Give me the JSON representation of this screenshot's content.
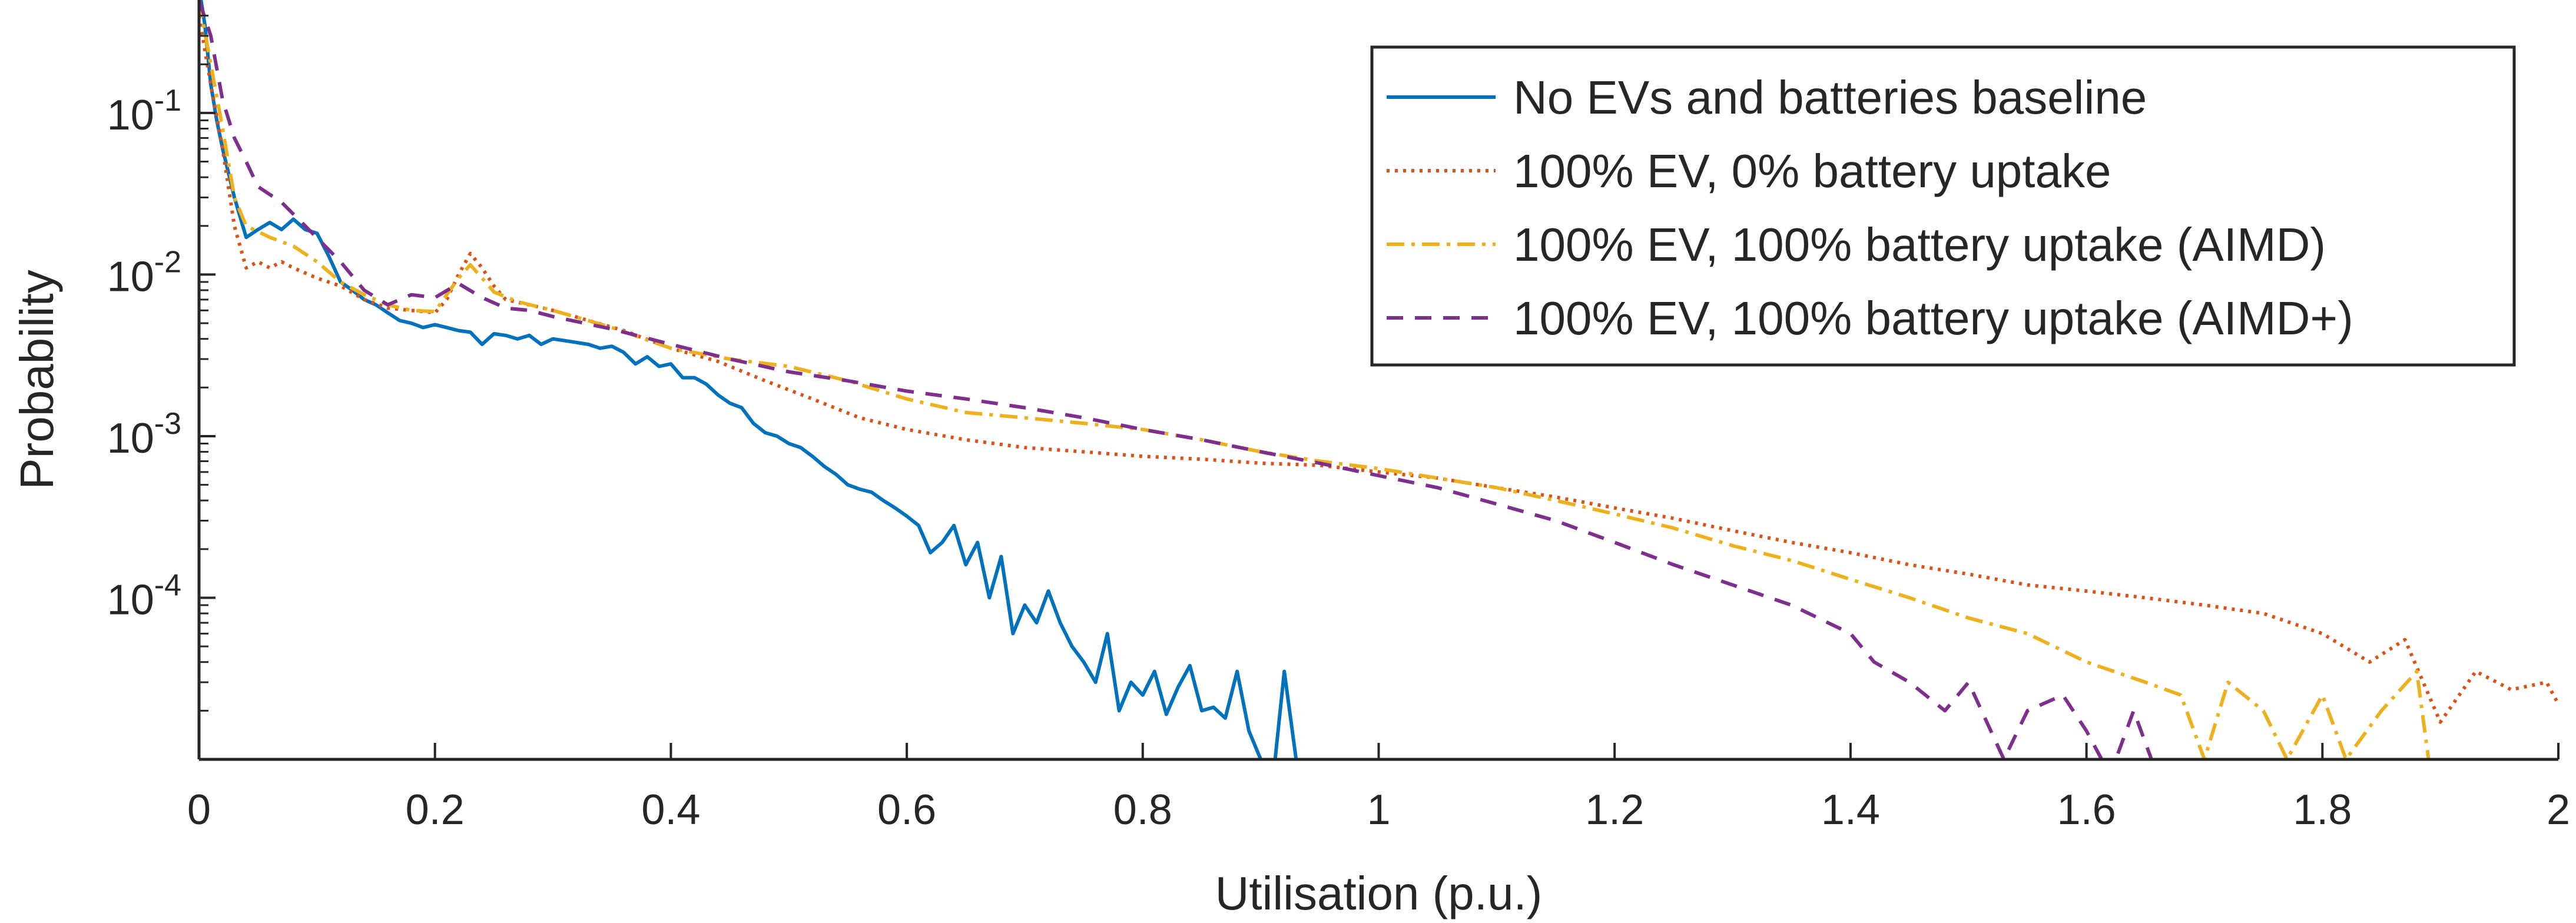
{
  "chart_data": {
    "type": "line",
    "title": "",
    "xlabel": "Utilisation (p.u.)",
    "ylabel": "Probability",
    "xlim": [
      0,
      2
    ],
    "ylim": [
      1e-05,
      0.5
    ],
    "yscale": "log",
    "grid": false,
    "legend_placement": "top-right",
    "xticks": [
      0,
      0.2,
      0.4,
      0.6,
      0.8,
      1,
      1.2,
      1.4,
      1.6,
      1.8,
      2
    ],
    "xtick_labels": [
      "0",
      "0.2",
      "0.4",
      "0.6",
      "0.8",
      "1",
      "1.2",
      "1.4",
      "1.6",
      "1.8",
      "2"
    ],
    "yticks": [
      0.0001,
      0.001,
      0.01,
      0.1
    ],
    "ytick_labels": [
      {
        "base": "10",
        "exp": "-4"
      },
      {
        "base": "10",
        "exp": "-3"
      },
      {
        "base": "10",
        "exp": "-2"
      },
      {
        "base": "10",
        "exp": "-1"
      }
    ],
    "series": [
      {
        "name": "No EVs and batteries baseline",
        "color": "#0072BD",
        "dash": "solid",
        "points": [
          [
            0,
            0.6
          ],
          [
            0.005,
            0.35
          ],
          [
            0.01,
            0.15
          ],
          [
            0.015,
            0.09
          ],
          [
            0.02,
            0.06
          ],
          [
            0.03,
            0.03
          ],
          [
            0.04,
            0.017
          ],
          [
            0.05,
            0.019
          ],
          [
            0.06,
            0.021
          ],
          [
            0.07,
            0.019
          ],
          [
            0.08,
            0.022
          ],
          [
            0.09,
            0.019
          ],
          [
            0.1,
            0.018
          ],
          [
            0.11,
            0.013
          ],
          [
            0.12,
            0.009
          ],
          [
            0.13,
            0.008
          ],
          [
            0.14,
            0.007
          ],
          [
            0.15,
            0.0065
          ],
          [
            0.16,
            0.0058
          ],
          [
            0.17,
            0.0052
          ],
          [
            0.18,
            0.005
          ],
          [
            0.19,
            0.0047
          ],
          [
            0.2,
            0.0049
          ],
          [
            0.21,
            0.0047
          ],
          [
            0.22,
            0.0045
          ],
          [
            0.23,
            0.0044
          ],
          [
            0.24,
            0.0037
          ],
          [
            0.25,
            0.0043
          ],
          [
            0.26,
            0.0042
          ],
          [
            0.27,
            0.004
          ],
          [
            0.28,
            0.0042
          ],
          [
            0.29,
            0.0037
          ],
          [
            0.3,
            0.004
          ],
          [
            0.31,
            0.0039
          ],
          [
            0.32,
            0.0038
          ],
          [
            0.33,
            0.0037
          ],
          [
            0.34,
            0.0035
          ],
          [
            0.35,
            0.0036
          ],
          [
            0.36,
            0.0033
          ],
          [
            0.37,
            0.0028
          ],
          [
            0.38,
            0.0031
          ],
          [
            0.39,
            0.0027
          ],
          [
            0.4,
            0.0028
          ],
          [
            0.41,
            0.0023
          ],
          [
            0.42,
            0.0023
          ],
          [
            0.43,
            0.0021
          ],
          [
            0.44,
            0.0018
          ],
          [
            0.45,
            0.0016
          ],
          [
            0.46,
            0.0015
          ],
          [
            0.47,
            0.0012
          ],
          [
            0.48,
            0.00105
          ],
          [
            0.49,
            0.001
          ],
          [
            0.5,
            0.0009
          ],
          [
            0.51,
            0.00085
          ],
          [
            0.52,
            0.00075
          ],
          [
            0.53,
            0.00065
          ],
          [
            0.54,
            0.00058
          ],
          [
            0.55,
            0.0005
          ],
          [
            0.56,
            0.00047
          ],
          [
            0.57,
            0.00045
          ],
          [
            0.58,
            0.0004
          ],
          [
            0.59,
            0.00036
          ],
          [
            0.6,
            0.00032
          ],
          [
            0.61,
            0.00028
          ],
          [
            0.62,
            0.00019
          ],
          [
            0.63,
            0.00022
          ],
          [
            0.64,
            0.00028
          ],
          [
            0.65,
            0.00016
          ],
          [
            0.66,
            0.00022
          ],
          [
            0.67,
            0.0001
          ],
          [
            0.68,
            0.00018
          ],
          [
            0.69,
            6e-05
          ],
          [
            0.7,
            9e-05
          ],
          [
            0.71,
            7e-05
          ],
          [
            0.72,
            0.00011
          ],
          [
            0.73,
            7e-05
          ],
          [
            0.74,
            5e-05
          ],
          [
            0.75,
            4e-05
          ],
          [
            0.76,
            3e-05
          ],
          [
            0.77,
            6e-05
          ],
          [
            0.78,
            2e-05
          ],
          [
            0.79,
            3e-05
          ],
          [
            0.8,
            2.5e-05
          ],
          [
            0.81,
            3.5e-05
          ],
          [
            0.82,
            1.9e-05
          ],
          [
            0.83,
            2.8e-05
          ],
          [
            0.84,
            3.8e-05
          ],
          [
            0.85,
            2e-05
          ],
          [
            0.86,
            2.1e-05
          ],
          [
            0.87,
            1.8e-05
          ],
          [
            0.88,
            3.5e-05
          ],
          [
            0.89,
            1.5e-05
          ],
          [
            0.9,
            1e-05
          ],
          [
            0.91,
            7e-06
          ],
          [
            0.92,
            3.5e-05
          ],
          [
            0.93,
            1e-05
          ],
          [
            0.94,
            7e-06
          ]
        ]
      },
      {
        "name": "100% EV, 0% battery uptake",
        "color": "#D95319",
        "dash": "dotted",
        "points": [
          [
            0,
            0.4
          ],
          [
            0.01,
            0.15
          ],
          [
            0.02,
            0.06
          ],
          [
            0.03,
            0.02
          ],
          [
            0.04,
            0.011
          ],
          [
            0.05,
            0.012
          ],
          [
            0.06,
            0.011
          ],
          [
            0.07,
            0.012
          ],
          [
            0.08,
            0.011
          ],
          [
            0.1,
            0.0095
          ],
          [
            0.12,
            0.0085
          ],
          [
            0.14,
            0.007
          ],
          [
            0.16,
            0.0062
          ],
          [
            0.18,
            0.006
          ],
          [
            0.2,
            0.0058
          ],
          [
            0.21,
            0.007
          ],
          [
            0.22,
            0.01
          ],
          [
            0.23,
            0.0135
          ],
          [
            0.24,
            0.011
          ],
          [
            0.25,
            0.0085
          ],
          [
            0.26,
            0.007
          ],
          [
            0.28,
            0.0065
          ],
          [
            0.3,
            0.006
          ],
          [
            0.33,
            0.0052
          ],
          [
            0.36,
            0.0045
          ],
          [
            0.4,
            0.0035
          ],
          [
            0.44,
            0.0029
          ],
          [
            0.48,
            0.0022
          ],
          [
            0.52,
            0.0017
          ],
          [
            0.56,
            0.0013
          ],
          [
            0.6,
            0.0011
          ],
          [
            0.65,
            0.00095
          ],
          [
            0.7,
            0.00085
          ],
          [
            0.75,
            0.0008
          ],
          [
            0.8,
            0.00075
          ],
          [
            0.85,
            0.00072
          ],
          [
            0.9,
            0.00068
          ],
          [
            0.95,
            0.00066
          ],
          [
            1.0,
            0.0006
          ],
          [
            1.05,
            0.00055
          ],
          [
            1.1,
            0.00048
          ],
          [
            1.15,
            0.00042
          ],
          [
            1.2,
            0.00036
          ],
          [
            1.25,
            0.00031
          ],
          [
            1.3,
            0.00026
          ],
          [
            1.35,
            0.00022
          ],
          [
            1.4,
            0.00019
          ],
          [
            1.45,
            0.00016
          ],
          [
            1.5,
            0.00014
          ],
          [
            1.55,
            0.00012
          ],
          [
            1.6,
            0.00011
          ],
          [
            1.65,
            0.0001
          ],
          [
            1.7,
            9e-05
          ],
          [
            1.75,
            8e-05
          ],
          [
            1.8,
            6e-05
          ],
          [
            1.84,
            4e-05
          ],
          [
            1.87,
            5.5e-05
          ],
          [
            1.9,
            1.7e-05
          ],
          [
            1.93,
            3.5e-05
          ],
          [
            1.96,
            2.7e-05
          ],
          [
            1.99,
            3e-05
          ],
          [
            2.0,
            2.2e-05
          ]
        ]
      },
      {
        "name": "100% EV, 100% battery uptake (AIMD)",
        "color": "#EDB120",
        "dash": "dashdot",
        "points": [
          [
            0,
            0.5
          ],
          [
            0.01,
            0.2
          ],
          [
            0.02,
            0.08
          ],
          [
            0.03,
            0.03
          ],
          [
            0.04,
            0.02
          ],
          [
            0.06,
            0.017
          ],
          [
            0.08,
            0.015
          ],
          [
            0.1,
            0.012
          ],
          [
            0.12,
            0.009
          ],
          [
            0.14,
            0.0075
          ],
          [
            0.16,
            0.0065
          ],
          [
            0.18,
            0.006
          ],
          [
            0.2,
            0.0059
          ],
          [
            0.21,
            0.0075
          ],
          [
            0.22,
            0.0095
          ],
          [
            0.23,
            0.0115
          ],
          [
            0.24,
            0.0095
          ],
          [
            0.25,
            0.0078
          ],
          [
            0.27,
            0.0068
          ],
          [
            0.3,
            0.006
          ],
          [
            0.35,
            0.0047
          ],
          [
            0.4,
            0.0035
          ],
          [
            0.45,
            0.003
          ],
          [
            0.5,
            0.0027
          ],
          [
            0.55,
            0.0022
          ],
          [
            0.6,
            0.0017
          ],
          [
            0.65,
            0.0014
          ],
          [
            0.7,
            0.0013
          ],
          [
            0.75,
            0.0012
          ],
          [
            0.8,
            0.0011
          ],
          [
            0.85,
            0.00095
          ],
          [
            0.9,
            0.0008
          ],
          [
            0.95,
            0.0007
          ],
          [
            1.0,
            0.00063
          ],
          [
            1.05,
            0.00055
          ],
          [
            1.1,
            0.00048
          ],
          [
            1.15,
            0.0004
          ],
          [
            1.2,
            0.00033
          ],
          [
            1.25,
            0.00027
          ],
          [
            1.3,
            0.00021
          ],
          [
            1.35,
            0.00017
          ],
          [
            1.4,
            0.00013
          ],
          [
            1.45,
            0.0001
          ],
          [
            1.5,
            7.5e-05
          ],
          [
            1.55,
            6e-05
          ],
          [
            1.6,
            4e-05
          ],
          [
            1.65,
            3e-05
          ],
          [
            1.68,
            2.5e-05
          ],
          [
            1.7,
            1e-05
          ],
          [
            1.72,
            3e-05
          ],
          [
            1.75,
            2e-05
          ],
          [
            1.77,
            1e-05
          ],
          [
            1.8,
            2.5e-05
          ],
          [
            1.82,
            1e-05
          ],
          [
            1.85,
            2e-05
          ],
          [
            1.88,
            3.5e-05
          ],
          [
            1.89,
            1e-05
          ]
        ]
      },
      {
        "name": "100% EV, 100% battery uptake (AIMD+)",
        "color": "#7E2F8E",
        "dash": "dashed",
        "points": [
          [
            0,
            0.5
          ],
          [
            0.01,
            0.3
          ],
          [
            0.02,
            0.12
          ],
          [
            0.03,
            0.07
          ],
          [
            0.04,
            0.05
          ],
          [
            0.05,
            0.035
          ],
          [
            0.07,
            0.028
          ],
          [
            0.09,
            0.02
          ],
          [
            0.12,
            0.012
          ],
          [
            0.14,
            0.008
          ],
          [
            0.16,
            0.0065
          ],
          [
            0.18,
            0.0075
          ],
          [
            0.2,
            0.0072
          ],
          [
            0.22,
            0.0088
          ],
          [
            0.24,
            0.0072
          ],
          [
            0.26,
            0.0062
          ],
          [
            0.28,
            0.006
          ],
          [
            0.3,
            0.0055
          ],
          [
            0.35,
            0.0046
          ],
          [
            0.4,
            0.0037
          ],
          [
            0.45,
            0.003
          ],
          [
            0.5,
            0.0025
          ],
          [
            0.55,
            0.0022
          ],
          [
            0.6,
            0.0019
          ],
          [
            0.65,
            0.0017
          ],
          [
            0.7,
            0.0015
          ],
          [
            0.75,
            0.0013
          ],
          [
            0.8,
            0.0011
          ],
          [
            0.85,
            0.00095
          ],
          [
            0.9,
            0.0008
          ],
          [
            0.95,
            0.00068
          ],
          [
            1.0,
            0.00057
          ],
          [
            1.05,
            0.00048
          ],
          [
            1.1,
            0.00038
          ],
          [
            1.15,
            0.0003
          ],
          [
            1.2,
            0.00022
          ],
          [
            1.25,
            0.00016
          ],
          [
            1.3,
            0.00012
          ],
          [
            1.35,
            9e-05
          ],
          [
            1.4,
            6e-05
          ],
          [
            1.42,
            4e-05
          ],
          [
            1.45,
            3e-05
          ],
          [
            1.48,
            2e-05
          ],
          [
            1.5,
            3e-05
          ],
          [
            1.53,
            1e-05
          ],
          [
            1.55,
            2e-05
          ],
          [
            1.58,
            2.5e-05
          ],
          [
            1.6,
            1.5e-05
          ],
          [
            1.62,
            8e-06
          ],
          [
            1.64,
            2e-05
          ],
          [
            1.66,
            8e-06
          ]
        ]
      }
    ]
  }
}
